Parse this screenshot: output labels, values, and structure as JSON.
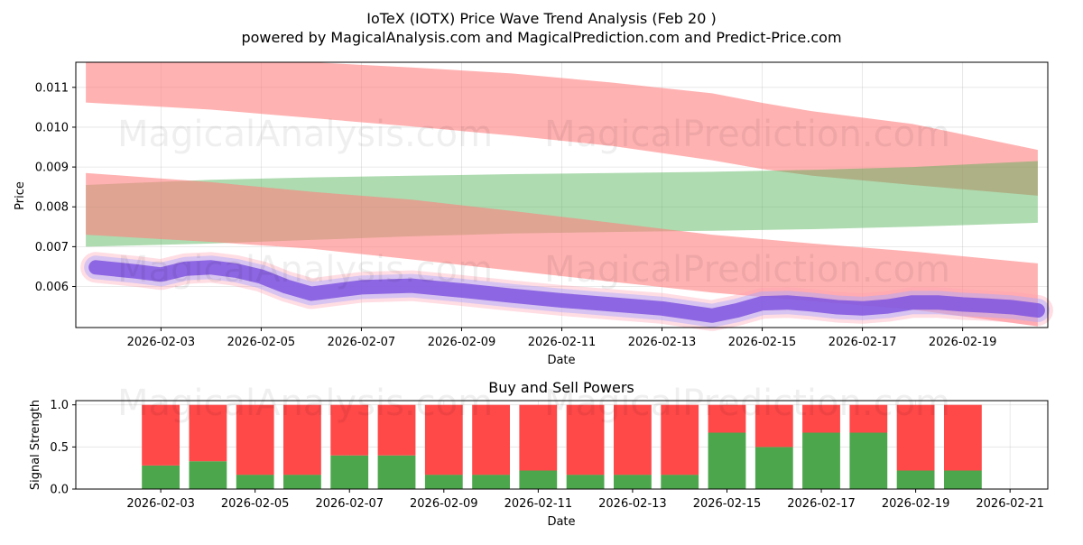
{
  "header": {
    "title": "IoTeX (IOTX) Price Wave Trend Analysis (Feb 20 )",
    "subtitle": "powered by MagicalAnalysis.com and MagicalPrediction.com and Predict-Price.com"
  },
  "watermarks": [
    "MagicalAnalysis.com",
    "MagicalPrediction.com"
  ],
  "colors": {
    "red_band": "#ff7f7f",
    "green_band": "#4caf50",
    "price_line": "#7b4fe0",
    "buy": "#4ca64c",
    "sell": "#ff4848"
  },
  "chart_data": [
    {
      "type": "area",
      "title": "",
      "xlabel": "Date",
      "ylabel": "Price",
      "ylim": [
        0.00497,
        0.01163
      ],
      "x_ticks": [
        "2026-02-03",
        "2026-02-05",
        "2026-02-07",
        "2026-02-09",
        "2026-02-11",
        "2026-02-13",
        "2026-02-15",
        "2026-02-17",
        "2026-02-19"
      ],
      "y_ticks": [
        "0.006",
        "0.007",
        "0.008",
        "0.009",
        "0.010",
        "0.011"
      ],
      "x_day_range": [
        1.3,
        20.7
      ],
      "grid": true,
      "bands": [
        {
          "name": "upper red band",
          "color": "red",
          "x": [
            1.5,
            4,
            6,
            8,
            10,
            12,
            14,
            15,
            16,
            18,
            20.5
          ],
          "lower": [
            0.01062,
            0.01044,
            0.01023,
            0.01002,
            0.00979,
            0.00953,
            0.00917,
            0.00895,
            0.00878,
            0.00855,
            0.00828
          ],
          "upper": [
            0.01163,
            0.01163,
            0.01163,
            0.0115,
            0.01135,
            0.01112,
            0.01085,
            0.01061,
            0.0104,
            0.01008,
            0.00943
          ]
        },
        {
          "name": "green band",
          "color": "green",
          "x": [
            1.5,
            4,
            6,
            8,
            10,
            12,
            14,
            16,
            18,
            20.5
          ],
          "lower": [
            0.007,
            0.00708,
            0.00717,
            0.00726,
            0.00733,
            0.00737,
            0.0074,
            0.00744,
            0.0075,
            0.0076
          ],
          "upper": [
            0.00855,
            0.00868,
            0.00874,
            0.00878,
            0.00882,
            0.00885,
            0.00888,
            0.00893,
            0.009,
            0.00915
          ]
        },
        {
          "name": "lower red band",
          "color": "red",
          "x": [
            1.5,
            4,
            6,
            8,
            10,
            12,
            14,
            16,
            18,
            20.5
          ],
          "lower": [
            0.0073,
            0.00712,
            0.00695,
            0.00668,
            0.0064,
            0.00612,
            0.00585,
            0.00563,
            0.00542,
            0.005
          ],
          "upper": [
            0.00885,
            0.00862,
            0.00838,
            0.00818,
            0.0079,
            0.0076,
            0.0073,
            0.00708,
            0.00688,
            0.00658
          ]
        }
      ],
      "series": [
        {
          "name": "price",
          "x": [
            1.7,
            2.5,
            3,
            3.5,
            4,
            4.5,
            5,
            5.5,
            6,
            6.5,
            7,
            8,
            9,
            10,
            11,
            12,
            13,
            14,
            14.5,
            15,
            15.5,
            16,
            16.5,
            17,
            17.5,
            18,
            18.5,
            19,
            19.5,
            20,
            20.5
          ],
          "y": [
            0.00648,
            0.00638,
            0.0063,
            0.00645,
            0.00648,
            0.0064,
            0.00625,
            0.006,
            0.00582,
            0.0059,
            0.00598,
            0.00602,
            0.0059,
            0.00577,
            0.00565,
            0.00555,
            0.00545,
            0.00527,
            0.0054,
            0.00558,
            0.0056,
            0.00555,
            0.00548,
            0.00545,
            0.0055,
            0.0056,
            0.0056,
            0.00555,
            0.00552,
            0.00548,
            0.0054
          ]
        }
      ]
    },
    {
      "type": "bar",
      "title": "Buy and Sell Powers",
      "xlabel": "Date",
      "ylabel": "Signal Strength",
      "ylim": [
        0,
        1.05
      ],
      "x_ticks": [
        "2026-02-03",
        "2026-02-05",
        "2026-02-07",
        "2026-02-09",
        "2026-02-11",
        "2026-02-13",
        "2026-02-15",
        "2026-02-17",
        "2026-02-19",
        "2026-02-21"
      ],
      "y_ticks": [
        "0.0",
        "0.5",
        "1.0"
      ],
      "categories": [
        "2026-02-03",
        "2026-02-04",
        "2026-02-05",
        "2026-02-06",
        "2026-02-07",
        "2026-02-08",
        "2026-02-09",
        "2026-02-10",
        "2026-02-11",
        "2026-02-12",
        "2026-02-13",
        "2026-02-14",
        "2026-02-15",
        "2026-02-16",
        "2026-02-17",
        "2026-02-18",
        "2026-02-19",
        "2026-02-20"
      ],
      "series": [
        {
          "name": "Buy",
          "values": [
            0.28,
            0.33,
            0.17,
            0.17,
            0.4,
            0.4,
            0.17,
            0.17,
            0.22,
            0.17,
            0.17,
            0.17,
            0.67,
            0.5,
            0.67,
            0.67,
            0.22,
            0.22
          ]
        },
        {
          "name": "Sell",
          "values": [
            0.72,
            0.67,
            0.83,
            0.83,
            0.6,
            0.6,
            0.83,
            0.83,
            0.78,
            0.83,
            0.83,
            0.83,
            0.33,
            0.5,
            0.33,
            0.33,
            0.78,
            0.78
          ]
        }
      ]
    }
  ]
}
